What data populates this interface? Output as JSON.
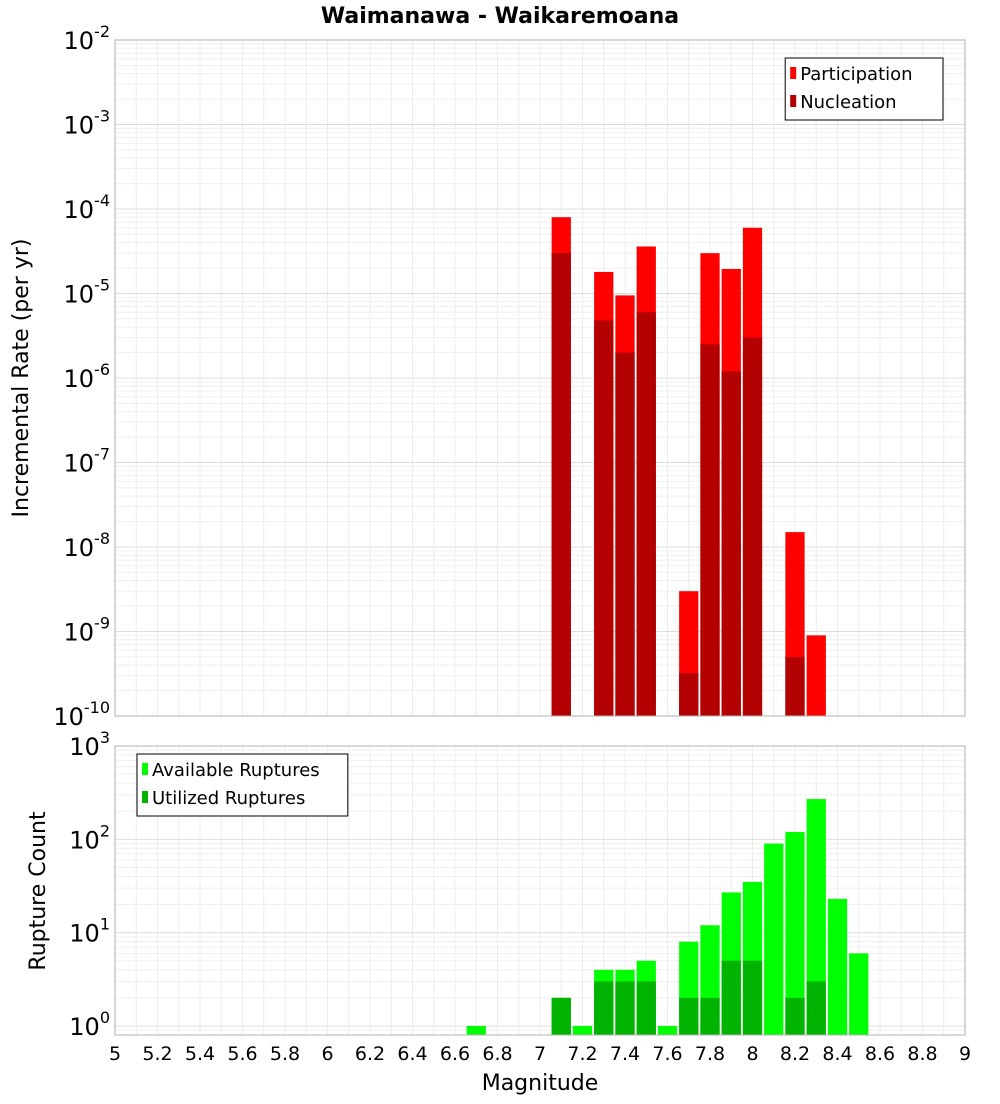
{
  "chart_data": [
    {
      "type": "bar",
      "title": "Waimanawa - Waikaremoana",
      "ylabel": "Incremental Rate (per yr)",
      "xlabel": "",
      "yscale": "log",
      "ylim": [
        1e-10,
        0.01
      ],
      "xlim": [
        5,
        9
      ],
      "y_tick_exponents": [
        "-2",
        "-3",
        "-4",
        "-5",
        "-6",
        "-7",
        "-8",
        "-9",
        "-10"
      ],
      "y_tick_base": "10",
      "legend": {
        "position": "top-right"
      },
      "series": [
        {
          "name": "Participation",
          "color": "#ff0000",
          "points": [
            {
              "x": 7.1,
              "y": 8e-05
            },
            {
              "x": 7.3,
              "y": 1.8e-05
            },
            {
              "x": 7.4,
              "y": 9.5e-06
            },
            {
              "x": 7.5,
              "y": 3.6e-05
            },
            {
              "x": 7.7,
              "y": 3e-09
            },
            {
              "x": 7.8,
              "y": 3e-05
            },
            {
              "x": 7.9,
              "y": 1.95e-05
            },
            {
              "x": 8.0,
              "y": 6e-05
            },
            {
              "x": 8.2,
              "y": 1.5e-08
            },
            {
              "x": 8.3,
              "y": 9e-10
            }
          ]
        },
        {
          "name": "Nucleation",
          "color": "#b30000",
          "points": [
            {
              "x": 7.1,
              "y": 3e-05
            },
            {
              "x": 7.3,
              "y": 4.8e-06
            },
            {
              "x": 7.4,
              "y": 2e-06
            },
            {
              "x": 7.5,
              "y": 6e-06
            },
            {
              "x": 7.7,
              "y": 3.2e-10
            },
            {
              "x": 7.8,
              "y": 2.5e-06
            },
            {
              "x": 7.9,
              "y": 1.2e-06
            },
            {
              "x": 8.0,
              "y": 3e-06
            },
            {
              "x": 8.2,
              "y": 5e-10
            }
          ]
        }
      ]
    },
    {
      "type": "bar",
      "title": "",
      "ylabel": "Rupture Count",
      "xlabel": "Magnitude",
      "yscale": "log",
      "ylim": [
        0.8,
        1000
      ],
      "xlim": [
        5,
        9
      ],
      "y_tick_exponents": [
        "3",
        "2",
        "1",
        "0"
      ],
      "y_tick_base": "10",
      "x_tick_labels": [
        "5",
        "5.2",
        "5.4",
        "5.6",
        "5.8",
        "6",
        "6.2",
        "6.4",
        "6.6",
        "6.8",
        "7",
        "7.2",
        "7.4",
        "7.6",
        "7.8",
        "8",
        "8.2",
        "8.4",
        "8.6",
        "8.8",
        "9"
      ],
      "legend": {
        "position": "top-left"
      },
      "series": [
        {
          "name": "Available Ruptures",
          "color": "#00ff00",
          "points": [
            {
              "x": 6.7,
              "y": 1
            },
            {
              "x": 7.1,
              "y": 2
            },
            {
              "x": 7.2,
              "y": 1
            },
            {
              "x": 7.3,
              "y": 4
            },
            {
              "x": 7.4,
              "y": 4
            },
            {
              "x": 7.5,
              "y": 5
            },
            {
              "x": 7.6,
              "y": 1
            },
            {
              "x": 7.7,
              "y": 8
            },
            {
              "x": 7.8,
              "y": 12
            },
            {
              "x": 7.9,
              "y": 27
            },
            {
              "x": 8.0,
              "y": 35
            },
            {
              "x": 8.1,
              "y": 90
            },
            {
              "x": 8.2,
              "y": 120
            },
            {
              "x": 8.3,
              "y": 270
            },
            {
              "x": 8.4,
              "y": 23
            },
            {
              "x": 8.5,
              "y": 6
            }
          ]
        },
        {
          "name": "Utilized Ruptures",
          "color": "#00b300",
          "points": [
            {
              "x": 7.1,
              "y": 2
            },
            {
              "x": 7.3,
              "y": 3
            },
            {
              "x": 7.4,
              "y": 3
            },
            {
              "x": 7.5,
              "y": 3
            },
            {
              "x": 7.7,
              "y": 2
            },
            {
              "x": 7.8,
              "y": 2
            },
            {
              "x": 7.9,
              "y": 5
            },
            {
              "x": 8.0,
              "y": 5
            },
            {
              "x": 8.2,
              "y": 2
            },
            {
              "x": 8.3,
              "y": 3
            }
          ]
        }
      ]
    }
  ]
}
